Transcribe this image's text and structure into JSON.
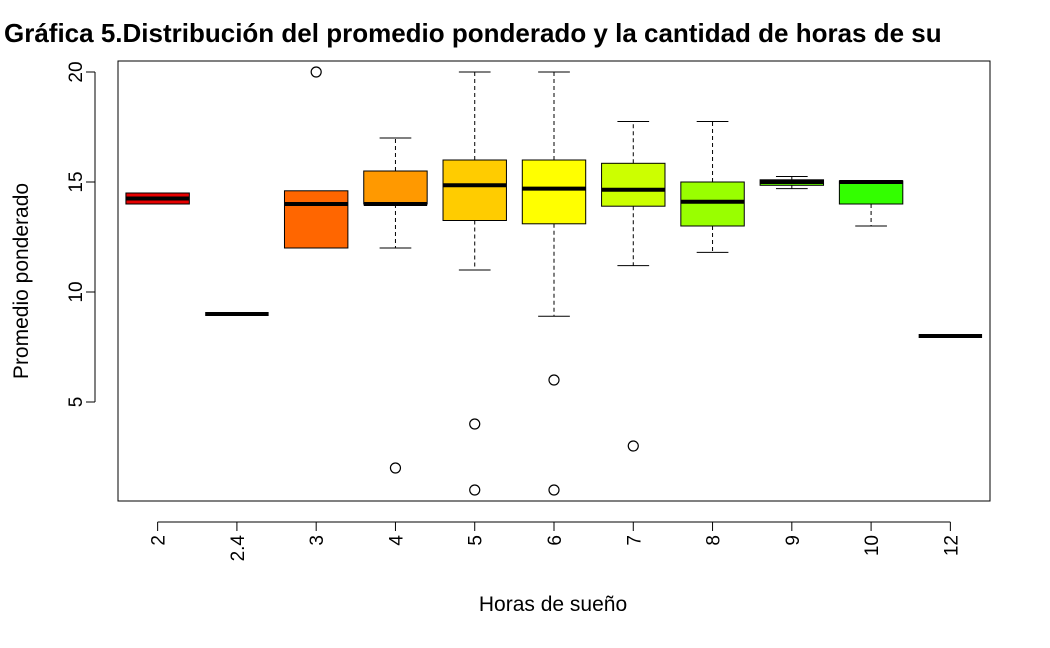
{
  "chart_data": {
    "type": "boxplot",
    "title": "Gráfica 5.Distribución del promedio ponderado y la cantidad de horas de su",
    "xlabel": "Horas de sueño",
    "ylabel": "Promedio ponderado",
    "ylim": [
      0.5,
      20.5
    ],
    "yticks": [
      5,
      10,
      15,
      20
    ],
    "grid": false,
    "legend": "none",
    "categories": [
      "2",
      "2.4",
      "3",
      "4",
      "5",
      "6",
      "7",
      "8",
      "9",
      "10",
      "12"
    ],
    "boxes": [
      {
        "category": "2",
        "color": "#E60000",
        "whisker_low": 14.0,
        "q1": 14.0,
        "median": 14.25,
        "q3": 14.5,
        "whisker_high": 14.5,
        "outliers": []
      },
      {
        "category": "2.4",
        "color": "#EB2600",
        "whisker_low": 9.0,
        "q1": 9.0,
        "median": 9.0,
        "q3": 9.0,
        "whisker_high": 9.0,
        "outliers": []
      },
      {
        "category": "3",
        "color": "#FF6600",
        "whisker_low": 12.0,
        "q1": 12.0,
        "median": 14.0,
        "q3": 14.6,
        "whisker_high": 14.6,
        "outliers": [
          20.0
        ]
      },
      {
        "category": "4",
        "color": "#FF9900",
        "whisker_low": 12.0,
        "q1": 14.0,
        "median": 14.0,
        "q3": 15.5,
        "whisker_high": 17.0,
        "outliers": [
          2.0
        ]
      },
      {
        "category": "5",
        "color": "#FFCC00",
        "whisker_low": 11.0,
        "q1": 13.25,
        "median": 14.85,
        "q3": 16.0,
        "whisker_high": 20.0,
        "outliers": [
          4.0,
          1.0
        ]
      },
      {
        "category": "6",
        "color": "#FFFF00",
        "whisker_low": 8.9,
        "q1": 13.1,
        "median": 14.7,
        "q3": 16.0,
        "whisker_high": 20.0,
        "outliers": [
          6.0,
          1.0
        ]
      },
      {
        "category": "7",
        "color": "#CCFF00",
        "whisker_low": 11.2,
        "q1": 13.9,
        "median": 14.65,
        "q3": 15.85,
        "whisker_high": 17.75,
        "outliers": [
          3.0
        ]
      },
      {
        "category": "8",
        "color": "#99FF00",
        "whisker_low": 11.8,
        "q1": 13.0,
        "median": 14.1,
        "q3": 15.0,
        "whisker_high": 17.75,
        "outliers": []
      },
      {
        "category": "9",
        "color": "#66FF00",
        "whisker_low": 14.7,
        "q1": 14.85,
        "median": 15.0,
        "q3": 15.1,
        "whisker_high": 15.25,
        "outliers": []
      },
      {
        "category": "10",
        "color": "#33FF00",
        "whisker_low": 13.0,
        "q1": 14.0,
        "median": 15.0,
        "q3": 15.05,
        "whisker_high": 15.05,
        "outliers": []
      },
      {
        "category": "12",
        "color": "#00FF00",
        "whisker_low": 8.0,
        "q1": 8.0,
        "median": 8.0,
        "q3": 8.0,
        "whisker_high": 8.0,
        "outliers": []
      }
    ]
  }
}
